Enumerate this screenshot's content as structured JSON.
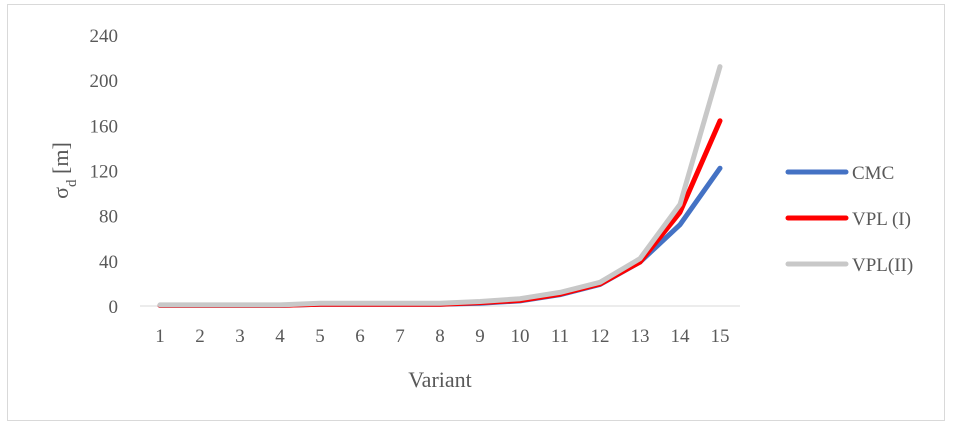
{
  "chart_data": {
    "type": "line",
    "title": "",
    "xlabel": "Variant",
    "ylabel_main": "σ",
    "ylabel_sub": "d",
    "ylabel_rest": " [m]",
    "categories": [
      "1",
      "2",
      "3",
      "4",
      "5",
      "6",
      "7",
      "8",
      "9",
      "10",
      "11",
      "12",
      "13",
      "14",
      "15"
    ],
    "ylim": [
      0,
      240
    ],
    "yticks": [
      0,
      40,
      80,
      120,
      160,
      200,
      240
    ],
    "grid": false,
    "legend_position": "right",
    "series": [
      {
        "name": "CMC",
        "color": "#4472c4",
        "values": [
          0.5,
          0.5,
          0.5,
          0.5,
          1.5,
          1.5,
          1.5,
          1.5,
          2.5,
          4.5,
          10,
          19,
          39,
          72,
          122
        ]
      },
      {
        "name": "VPL (I)",
        "color": "#ff0000",
        "values": [
          0.5,
          0.5,
          0.5,
          0.5,
          1.5,
          1.5,
          1.5,
          1.5,
          3,
          5,
          10.5,
          19.5,
          39,
          83,
          164
        ]
      },
      {
        "name": "VPL(II)",
        "color": "#c8c8c8",
        "values": [
          1,
          1,
          1,
          1,
          2.5,
          2.5,
          2.5,
          2.5,
          4,
          6.5,
          12,
          21,
          42,
          90,
          212
        ]
      }
    ]
  }
}
